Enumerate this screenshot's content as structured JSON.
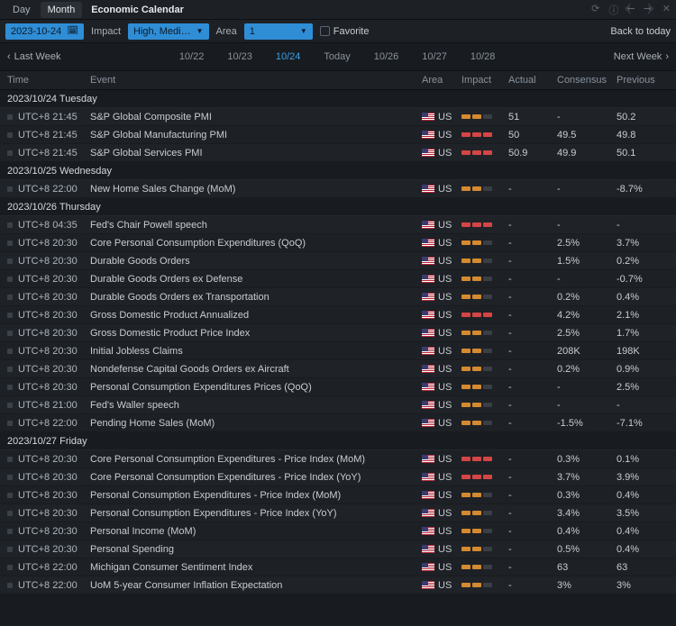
{
  "titlebar": {
    "tab_day": "Day",
    "tab_month": "Month",
    "title": "Economic Calendar"
  },
  "filterbar": {
    "date_value": "2023-10-24",
    "impact_label": "Impact",
    "impact_value": "High, Medi…",
    "area_label": "Area",
    "area_value": "1",
    "favorite_label": "Favorite",
    "back_to_today": "Back to today"
  },
  "navbar": {
    "last_week": "Last Week",
    "next_week": "Next Week",
    "dates": [
      "10/22",
      "10/23",
      "10/24",
      "Today",
      "10/26",
      "10/27",
      "10/28"
    ],
    "active_index": 2
  },
  "columns": {
    "time": "Time",
    "event": "Event",
    "area": "Area",
    "impact": "Impact",
    "actual": "Actual",
    "consensus": "Consensus",
    "previous": "Previous"
  },
  "groups": [
    {
      "label": "2023/10/24 Tuesday",
      "rows": [
        {
          "time": "UTC+8 21:45",
          "event": "S&P Global Composite PMI",
          "area": "US",
          "impact": "med",
          "actual": "51",
          "consensus": "-",
          "previous": "50.2"
        },
        {
          "time": "UTC+8 21:45",
          "event": "S&P Global Manufacturing PMI",
          "area": "US",
          "impact": "high",
          "actual": "50",
          "consensus": "49.5",
          "previous": "49.8"
        },
        {
          "time": "UTC+8 21:45",
          "event": "S&P Global Services PMI",
          "area": "US",
          "impact": "high",
          "actual": "50.9",
          "consensus": "49.9",
          "previous": "50.1"
        }
      ]
    },
    {
      "label": "2023/10/25 Wednesday",
      "rows": [
        {
          "time": "UTC+8 22:00",
          "event": "New Home Sales Change (MoM)",
          "area": "US",
          "impact": "med",
          "actual": "-",
          "consensus": "-",
          "previous": "-8.7%"
        }
      ]
    },
    {
      "label": "2023/10/26 Thursday",
      "rows": [
        {
          "time": "UTC+8 04:35",
          "event": "Fed's Chair Powell speech",
          "area": "US",
          "impact": "high",
          "actual": "-",
          "consensus": "-",
          "previous": "-"
        },
        {
          "time": "UTC+8 20:30",
          "event": "Core Personal Consumption Expenditures (QoQ)",
          "area": "US",
          "impact": "med",
          "actual": "-",
          "consensus": "2.5%",
          "previous": "3.7%"
        },
        {
          "time": "UTC+8 20:30",
          "event": "Durable Goods Orders",
          "area": "US",
          "impact": "med",
          "actual": "-",
          "consensus": "1.5%",
          "previous": "0.2%"
        },
        {
          "time": "UTC+8 20:30",
          "event": "Durable Goods Orders ex Defense",
          "area": "US",
          "impact": "med",
          "actual": "-",
          "consensus": "-",
          "previous": "-0.7%"
        },
        {
          "time": "UTC+8 20:30",
          "event": "Durable Goods Orders ex Transportation",
          "area": "US",
          "impact": "med",
          "actual": "-",
          "consensus": "0.2%",
          "previous": "0.4%"
        },
        {
          "time": "UTC+8 20:30",
          "event": "Gross Domestic Product Annualized",
          "area": "US",
          "impact": "high",
          "actual": "-",
          "consensus": "4.2%",
          "previous": "2.1%"
        },
        {
          "time": "UTC+8 20:30",
          "event": "Gross Domestic Product Price Index",
          "area": "US",
          "impact": "med",
          "actual": "-",
          "consensus": "2.5%",
          "previous": "1.7%"
        },
        {
          "time": "UTC+8 20:30",
          "event": "Initial Jobless Claims",
          "area": "US",
          "impact": "med",
          "actual": "-",
          "consensus": "208K",
          "previous": "198K"
        },
        {
          "time": "UTC+8 20:30",
          "event": "Nondefense Capital Goods Orders ex Aircraft",
          "area": "US",
          "impact": "med",
          "actual": "-",
          "consensus": "0.2%",
          "previous": "0.9%"
        },
        {
          "time": "UTC+8 20:30",
          "event": "Personal Consumption Expenditures Prices (QoQ)",
          "area": "US",
          "impact": "med",
          "actual": "-",
          "consensus": "-",
          "previous": "2.5%"
        },
        {
          "time": "UTC+8 21:00",
          "event": "Fed's Waller speech",
          "area": "US",
          "impact": "med",
          "actual": "-",
          "consensus": "-",
          "previous": "-"
        },
        {
          "time": "UTC+8 22:00",
          "event": "Pending Home Sales (MoM)",
          "area": "US",
          "impact": "med",
          "actual": "-",
          "consensus": "-1.5%",
          "previous": "-7.1%"
        }
      ]
    },
    {
      "label": "2023/10/27 Friday",
      "rows": [
        {
          "time": "UTC+8 20:30",
          "event": "Core Personal Consumption Expenditures - Price Index (MoM)",
          "area": "US",
          "impact": "high",
          "actual": "-",
          "consensus": "0.3%",
          "previous": "0.1%"
        },
        {
          "time": "UTC+8 20:30",
          "event": "Core Personal Consumption Expenditures - Price Index (YoY)",
          "area": "US",
          "impact": "high",
          "actual": "-",
          "consensus": "3.7%",
          "previous": "3.9%"
        },
        {
          "time": "UTC+8 20:30",
          "event": "Personal Consumption Expenditures - Price Index (MoM)",
          "area": "US",
          "impact": "med",
          "actual": "-",
          "consensus": "0.3%",
          "previous": "0.4%"
        },
        {
          "time": "UTC+8 20:30",
          "event": "Personal Consumption Expenditures - Price Index (YoY)",
          "area": "US",
          "impact": "med",
          "actual": "-",
          "consensus": "3.4%",
          "previous": "3.5%"
        },
        {
          "time": "UTC+8 20:30",
          "event": "Personal Income (MoM)",
          "area": "US",
          "impact": "med",
          "actual": "-",
          "consensus": "0.4%",
          "previous": "0.4%"
        },
        {
          "time": "UTC+8 20:30",
          "event": "Personal Spending",
          "area": "US",
          "impact": "med",
          "actual": "-",
          "consensus": "0.5%",
          "previous": "0.4%"
        },
        {
          "time": "UTC+8 22:00",
          "event": "Michigan Consumer Sentiment Index",
          "area": "US",
          "impact": "med",
          "actual": "-",
          "consensus": "63",
          "previous": "63"
        },
        {
          "time": "UTC+8 22:00",
          "event": "UoM 5-year Consumer Inflation Expectation",
          "area": "US",
          "impact": "med",
          "actual": "-",
          "consensus": "3%",
          "previous": "3%"
        }
      ]
    }
  ],
  "colors": {
    "accent": "#2f8dd6",
    "active_date": "#3aa0e8",
    "impact_high": "#d64545",
    "impact_med": "#d68a2f",
    "background": "#181c20"
  }
}
